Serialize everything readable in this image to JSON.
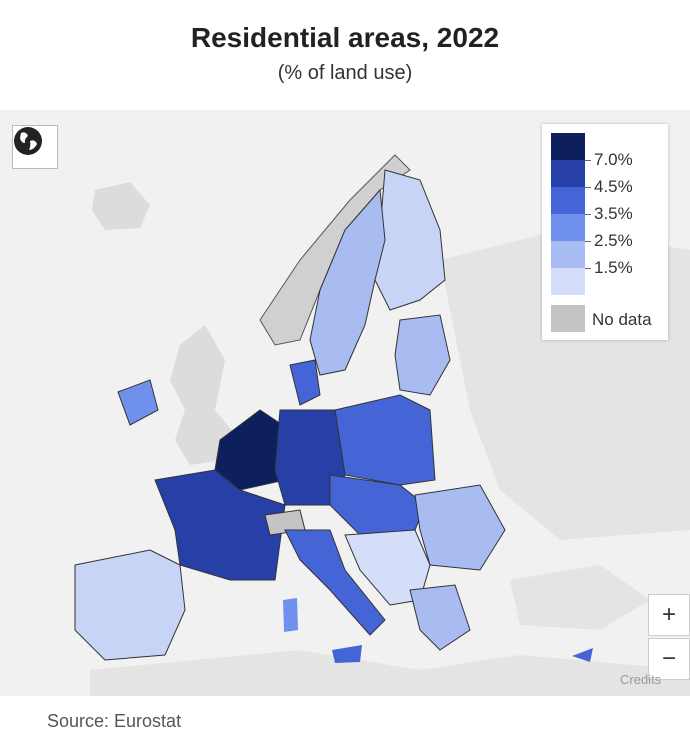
{
  "title": "Residential areas, 2022",
  "subtitle": "(% of land use)",
  "legend": {
    "items": [
      {
        "label": "7.0%",
        "color": "#0d1f5c"
      },
      {
        "label": "4.5%",
        "color": "#2640a8"
      },
      {
        "label": "3.5%",
        "color": "#4565d6"
      },
      {
        "label": "2.5%",
        "color": "#7090ee"
      },
      {
        "label": "1.5%",
        "color": "#a8bcf2"
      },
      {
        "label": "",
        "color": "#d4def8"
      }
    ],
    "no_data_label": "No data",
    "no_data_color": "#c4c4c4"
  },
  "controls": {
    "zoom_in": "+",
    "zoom_out": "−"
  },
  "credits": "Credits",
  "source": "Source: Eurostat"
}
